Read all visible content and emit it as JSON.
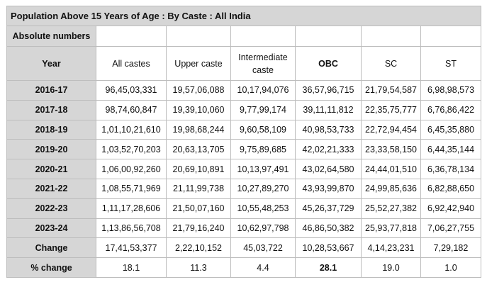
{
  "table": {
    "title": "Population Above 15 Years of Age : By Caste : All India",
    "subtitle": "Absolute numbers",
    "headers": [
      "Year",
      "All castes",
      "Upper caste",
      "Intermediate caste",
      "OBC",
      "SC",
      "ST"
    ],
    "rows": [
      {
        "year": "2016-17",
        "all": "96,45,03,331",
        "upper": "19,57,06,088",
        "intermediate": "10,17,94,076",
        "obc": "36,57,96,715",
        "sc": "21,79,54,587",
        "st": "6,98,98,573"
      },
      {
        "year": "2017-18",
        "all": "98,74,60,847",
        "upper": "19,39,10,060",
        "intermediate": "9,77,99,174",
        "obc": "39,11,11,812",
        "sc": "22,35,75,777",
        "st": "6,76,86,422"
      },
      {
        "year": "2018-19",
        "all": "1,01,10,21,610",
        "upper": "19,98,68,244",
        "intermediate": "9,60,58,109",
        "obc": "40,98,53,733",
        "sc": "22,72,94,454",
        "st": "6,45,35,880"
      },
      {
        "year": "2019-20",
        "all": "1,03,52,70,203",
        "upper": "20,63,13,705",
        "intermediate": "9,75,89,685",
        "obc": "42,02,21,333",
        "sc": "23,33,58,150",
        "st": "6,44,35,144"
      },
      {
        "year": "2020-21",
        "all": "1,06,00,92,260",
        "upper": "20,69,10,891",
        "intermediate": "10,13,97,491",
        "obc": "43,02,64,580",
        "sc": "24,44,01,510",
        "st": "6,36,78,134"
      },
      {
        "year": "2021-22",
        "all": "1,08,55,71,969",
        "upper": "21,11,99,738",
        "intermediate": "10,27,89,270",
        "obc": "43,93,99,870",
        "sc": "24,99,85,636",
        "st": "6,82,88,650"
      },
      {
        "year": "2022-23",
        "all": "1,11,17,28,606",
        "upper": "21,50,07,160",
        "intermediate": "10,55,48,253",
        "obc": "45,26,37,729",
        "sc": "25,52,27,382",
        "st": "6,92,42,940"
      },
      {
        "year": "2023-24",
        "all": "1,13,86,56,708",
        "upper": "21,79,16,240",
        "intermediate": "10,62,97,798",
        "obc": "46,86,50,382",
        "sc": "25,93,77,818",
        "st": "7,06,27,755"
      },
      {
        "year": "Change",
        "all": "17,41,53,377",
        "upper": "2,22,10,152",
        "intermediate": "45,03,722",
        "obc": "10,28,53,667",
        "sc": "4,14,23,231",
        "st": "7,29,182"
      },
      {
        "year": "% change",
        "all": "18.1",
        "upper": "11.3",
        "intermediate": "4.4",
        "obc": "28.1",
        "sc": "19.0",
        "st": "1.0"
      }
    ]
  }
}
